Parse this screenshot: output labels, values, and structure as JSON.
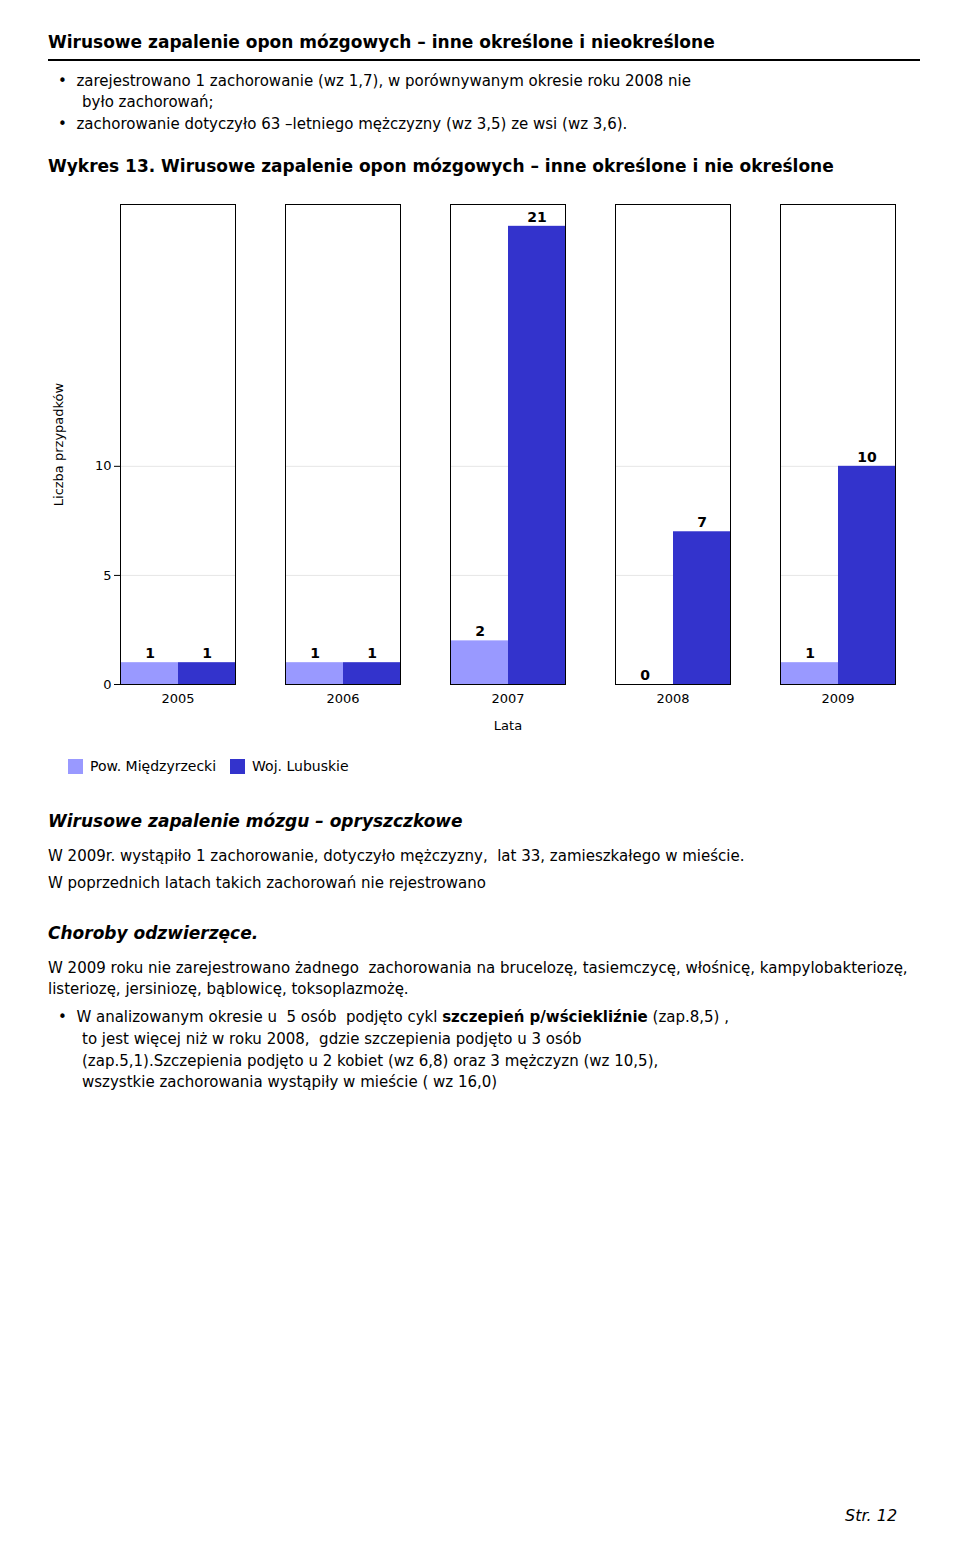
{
  "text_before": [
    {
      "style": "heading",
      "text": "Wirusowe zapalenie opon mózgowych – inne określone i nieokreślone"
    },
    {
      "style": "bullet",
      "text": "•  zarejestrowano 1 zachorowanie (wz 1,7), w porównywanym okresie roku 2008 nie"
    },
    {
      "style": "indent",
      "text": "było zachorowań;"
    },
    {
      "style": "bullet",
      "text": "•  zachorowanie dotyczyło 63 –letniego mężczyzny (wz 3,5) ze wsi (wz 3,6)."
    }
  ],
  "chart_data": {
    "type": "bar",
    "title": "Wykres 13. Wirusowe  zapalenie opon mózgowych – inne określone i nie określone",
    "categories": [
      "2005",
      "2006",
      "2007",
      "2008",
      "2009"
    ],
    "series": [
      {
        "name": "Pow. Międzyrzecki",
        "color": "#9999FF",
        "values": [
          1,
          1,
          2,
          0,
          1
        ]
      },
      {
        "name": "Woj. Lubuskie",
        "color": "#3333CC",
        "values": [
          1,
          1,
          21,
          7,
          10
        ]
      }
    ],
    "xlabel": "Lata",
    "ylabel": "Liczba przypadków",
    "ylim": [
      0,
      22
    ],
    "yticks": [
      0,
      5,
      10
    ],
    "grid": true,
    "legend": "bottom",
    "data_labels": true
  },
  "text_after": [
    {
      "style": "italic_heading",
      "text": "Wirusowe zapalenie mózgu – opryszczkowe"
    },
    {
      "style": "body",
      "text": "W 2009r. wystąpiło 1 zachorowanie, dotyczyło mężczyzny,  lat 33, zamieszkałego w mieście."
    },
    {
      "style": "body",
      "text": "W poprzednich latach takich zachorowań nie rejestrowano"
    },
    {
      "style": "italic_heading",
      "text": "Choroby odzwierzęce."
    },
    {
      "style": "body",
      "text": "W 2009 roku nie zarejestrowano żadnego  zachorowania na brucelozę, tasiemczycę, włośnicę, kampylobakteriozę, listeriozę, jersiniozę, bąblowicę, toksoplazmożę."
    },
    {
      "style": "bullet",
      "runs": [
        {
          "text": "•  W analizowanym okresie u  5 osób  podjęto cykl ",
          "bold": false
        },
        {
          "text": "szczepień p/wściekliźnie",
          "bold": true
        },
        {
          "text": " (zap.8,5) ,",
          "bold": false
        }
      ]
    },
    {
      "style": "indent",
      "text": "to jest więcej niż w roku 2008,  gdzie szczepienia podjęto u 3 osób"
    },
    {
      "style": "indent",
      "text": "(zap.5,1).Szczepienia podjęto u 2 kobiet (wz 6,8) oraz 3 mężczyzn (wz 10,5),"
    },
    {
      "style": "indent",
      "text": "wszystkie zachorowania wystąpiły w mieście ( wz 16,0)"
    }
  ],
  "page_number": "Str. 12"
}
